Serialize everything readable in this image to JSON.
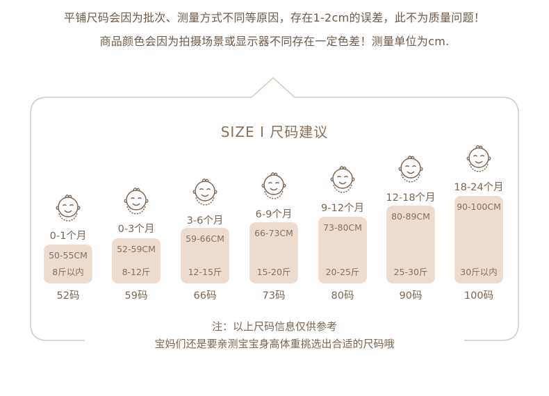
{
  "notice": {
    "line1": "平铺尺码会因为批次、测量方式不同等原因，存在1-2cm的误差，此不为质量问题！",
    "line2": "商品颜色会因为拍摄场景或显示器不同存在一定色差！测量单位为cm."
  },
  "title": "SIZE  Ⅰ  尺码建议",
  "sizes": [
    {
      "age": "0-1个月",
      "height": "50-55CM",
      "weight": "8斤以内",
      "code": "52码"
    },
    {
      "age": "0-3个月",
      "height": "52-59CM",
      "weight": "8-12斤",
      "code": "59码"
    },
    {
      "age": "3-6个月",
      "height": "59-66CM",
      "weight": "12-15斤",
      "code": "66码"
    },
    {
      "age": "6-9个月",
      "height": "66-73CM",
      "weight": "15-20斤",
      "code": "73码"
    },
    {
      "age": "9-12个月",
      "height": "73-80CM",
      "weight": "20-25斤",
      "code": "80码"
    },
    {
      "age": "12-18个月",
      "height": "80-89CM",
      "weight": "25-30斤",
      "code": "90码"
    },
    {
      "age": "18-24个月",
      "height": "90-100CM",
      "weight": "30斤以内",
      "code": "100码"
    }
  ],
  "icons": {
    "baby": "baby-face-icon"
  },
  "colors": {
    "card": "#ecdccf",
    "text": "#7a6552",
    "frame": "#d7c8bb"
  },
  "footnote": {
    "line1": "注：以上尺码信息仅供参考",
    "line2": "宝妈们还是要亲测宝宝身高体重挑选出合适的尺码哦"
  }
}
